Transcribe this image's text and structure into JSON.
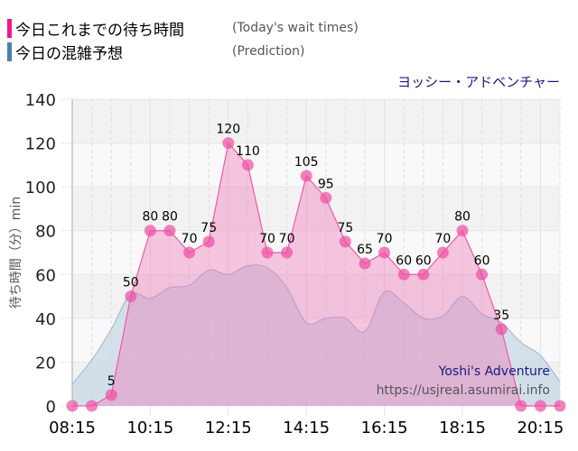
{
  "legend": {
    "items": [
      {
        "label": "今日これまでの待ち時間",
        "label_en": "(Today's wait times)",
        "color": "#f0188c"
      },
      {
        "label": "今日の混雑予想",
        "label_en": "(Prediction)",
        "color": "#4a80b4"
      }
    ]
  },
  "attraction_name": "ヨッシー・アドベンチャー",
  "watermark": {
    "line1": "Yoshi's Adventure",
    "line2": "https://usjreal.asumirai.info"
  },
  "colors": {
    "actual_line": "#ee5aa8",
    "actual_fill": "#f7b6d9",
    "actual_marker": "#ee4da2",
    "prediction_line": "#9db4cc",
    "prediction_fill": "#c7d8e6",
    "overlap_fill": "#d9b8d9",
    "band_light": "#f9f9f9",
    "band_dark": "#f2f2f2"
  },
  "chart_data": {
    "type": "area",
    "title": "",
    "xlabel": "",
    "ylabel": "待ち時間（分）min",
    "ylim": [
      0,
      140
    ],
    "yticks": [
      0,
      20,
      40,
      60,
      80,
      100,
      120,
      140
    ],
    "xtick_labels": [
      "08:15",
      "10:15",
      "12:15",
      "14:15",
      "16:15",
      "18:15",
      "20:15"
    ],
    "grid": true,
    "legend_position": "top-left",
    "x": [
      "08:15",
      "08:45",
      "09:15",
      "09:45",
      "10:15",
      "10:45",
      "11:15",
      "11:45",
      "12:15",
      "12:45",
      "13:15",
      "13:45",
      "14:15",
      "14:45",
      "15:15",
      "15:45",
      "16:15",
      "16:45",
      "17:15",
      "17:45",
      "18:15",
      "18:45",
      "19:15",
      "19:45",
      "20:15",
      "20:45"
    ],
    "series": [
      {
        "name": "今日これまでの待ち時間 (Today's wait times)",
        "values": [
          0,
          0,
          5,
          50,
          80,
          80,
          70,
          75,
          120,
          110,
          70,
          70,
          105,
          95,
          75,
          65,
          70,
          60,
          60,
          70,
          80,
          60,
          35,
          0,
          0,
          0
        ],
        "data_labels": [
          "",
          "",
          "5",
          "50",
          "80",
          "80",
          "70",
          "75",
          "120",
          "110",
          "70",
          "70",
          "105",
          "95",
          "75",
          "65",
          "70",
          "60",
          "60",
          "70",
          "80",
          "60",
          "35",
          "",
          "",
          ""
        ]
      },
      {
        "name": "今日の混雑予想 (Prediction)",
        "values": [
          10,
          21,
          35,
          51,
          49,
          54,
          55,
          62,
          60,
          64,
          63,
          54,
          38,
          40,
          40,
          34,
          52,
          47,
          40,
          41,
          50,
          42,
          38,
          29,
          23,
          11
        ]
      }
    ]
  }
}
